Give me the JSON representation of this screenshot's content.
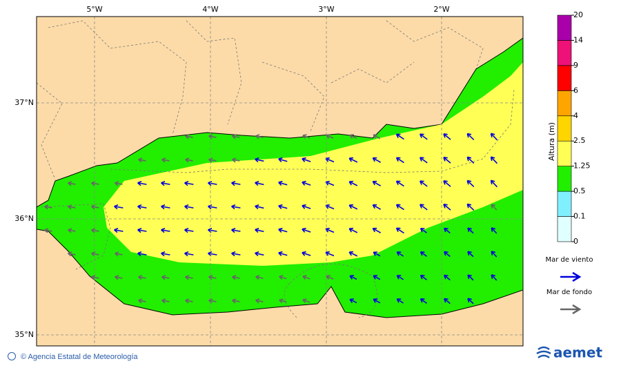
{
  "map": {
    "lon_labels": [
      "5°W",
      "4°W",
      "3°W",
      "2°W"
    ],
    "lat_labels": [
      "37°N",
      "36°N",
      "35°N"
    ]
  },
  "colorbar": {
    "title": "Altura (m)",
    "levels": [
      0,
      0.1,
      0.5,
      1.25,
      2.5,
      4,
      6,
      9,
      14,
      20
    ],
    "colors": [
      "#e0ffff",
      "#80f0ff",
      "#22ee00",
      "#ffff55",
      "#ffd500",
      "#ffa500",
      "#ff0000",
      "#ee1177",
      "#aa00aa"
    ]
  },
  "legend": [
    {
      "label": "Mar de viento",
      "color": "#0000dd"
    },
    {
      "label": "Mar de fondo",
      "color": "#666666"
    }
  ],
  "footer": {
    "credit": "© Agencia Estatal de Meteorología",
    "logo": "aemet"
  }
}
